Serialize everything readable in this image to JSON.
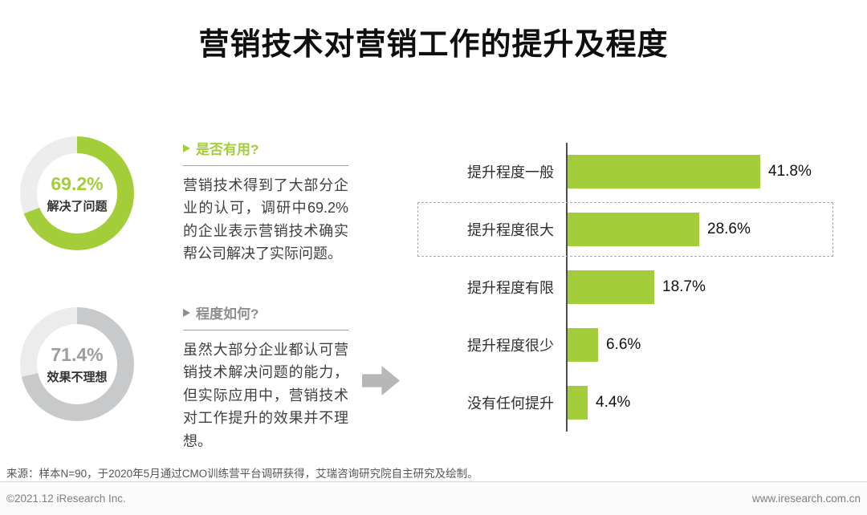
{
  "title": "营销技术对营销工作的提升及程度",
  "sections": [
    {
      "heading": "是否有用?",
      "body": "营销技术得到了大部分企业的认可，调研中69.2%的企业表示营销技术确实帮公司解决了实际问题。",
      "accent": "#a3ce3a"
    },
    {
      "heading": "程度如何?",
      "body": "虽然大部分企业都认可营销技术解决问题的能力，但实际应用中，营销技术对工作提升的效果并不理想。",
      "accent": "#8f8f8f"
    }
  ],
  "chart_data": [
    {
      "type": "pie",
      "subtype": "donut",
      "value": 69.2,
      "display_value": "69.2%",
      "label": "解决了问题",
      "color": "#a3ce3a",
      "track_color": "#ededed",
      "value_color": "#a3ce3a"
    },
    {
      "type": "pie",
      "subtype": "donut",
      "value": 71.4,
      "display_value": "71.4%",
      "label": "效果不理想",
      "color": "#c8c9ca",
      "track_color": "#ececec",
      "value_color": "#9c9d9e"
    },
    {
      "type": "bar",
      "orientation": "horizontal",
      "categories": [
        "提升程度一般",
        "提升程度很大",
        "提升程度有限",
        "提升程度很少",
        "没有任何提升"
      ],
      "values": [
        41.8,
        28.6,
        18.7,
        6.6,
        4.4
      ],
      "value_labels": [
        "41.8%",
        "28.6%",
        "18.7%",
        "6.6%",
        "4.4%"
      ],
      "highlighted_category": "提升程度很大",
      "bar_color": "#a3ce3a",
      "axis_color": "#4d4d4d",
      "xlim": [
        0,
        45
      ],
      "grid": false,
      "legend": false
    }
  ],
  "source": "来源：样本N=90，于2020年5月通过CMO训练营平台调研获得，艾瑞咨询研究院自主研究及绘制。",
  "footer": {
    "copyright": "©2021.12 iResearch Inc.",
    "website": "www.iresearch.com.cn"
  }
}
